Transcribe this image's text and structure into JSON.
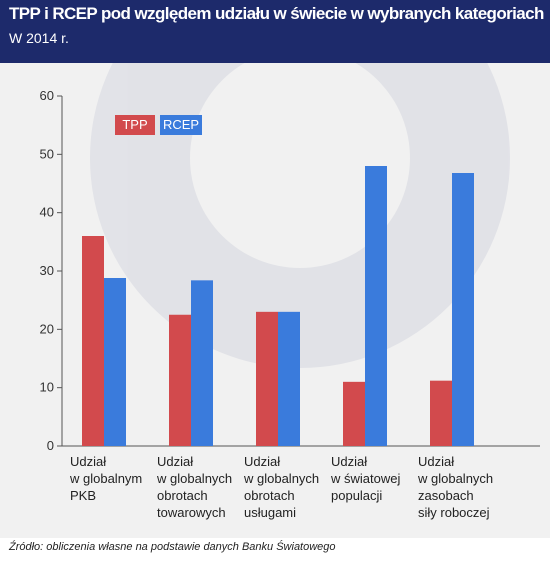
{
  "header": {
    "title": "TPP i RCEP pod względem udziału w świecie w wybranych kategoriach",
    "subtitle": "W 2014 r."
  },
  "source": "Źródło: obliczenia własne na podstawie danych Banku Światowego",
  "colors": {
    "header_bg": "#1d2a6b",
    "tpp": "#d24a4d",
    "rcep": "#3a7bdc",
    "plot_bg": "#f1f1f1"
  },
  "chart_data": {
    "type": "bar",
    "title": "",
    "xlabel": "",
    "ylabel": "",
    "ylim": [
      0,
      60
    ],
    "yticks": [
      0,
      10,
      20,
      30,
      40,
      50,
      60
    ],
    "grid": false,
    "legend_placement": "top-left",
    "categories": [
      [
        "Udział",
        "w globalnym",
        "PKB"
      ],
      [
        "Udział",
        "w globalnych",
        "obrotach",
        "towarowych"
      ],
      [
        "Udział",
        "w globalnych",
        "obrotach",
        "usługami"
      ],
      [
        "Udział",
        "w światowej",
        "populacji"
      ],
      [
        "Udział",
        "w globalnych",
        "zasobach",
        "siły roboczej"
      ]
    ],
    "series": [
      {
        "name": "TPP",
        "color": "#d24a4d",
        "values": [
          36,
          22.5,
          23,
          11,
          11.2
        ]
      },
      {
        "name": "RCEP",
        "color": "#3a7bdc",
        "values": [
          28.8,
          28.4,
          23,
          48,
          46.8
        ]
      }
    ]
  }
}
